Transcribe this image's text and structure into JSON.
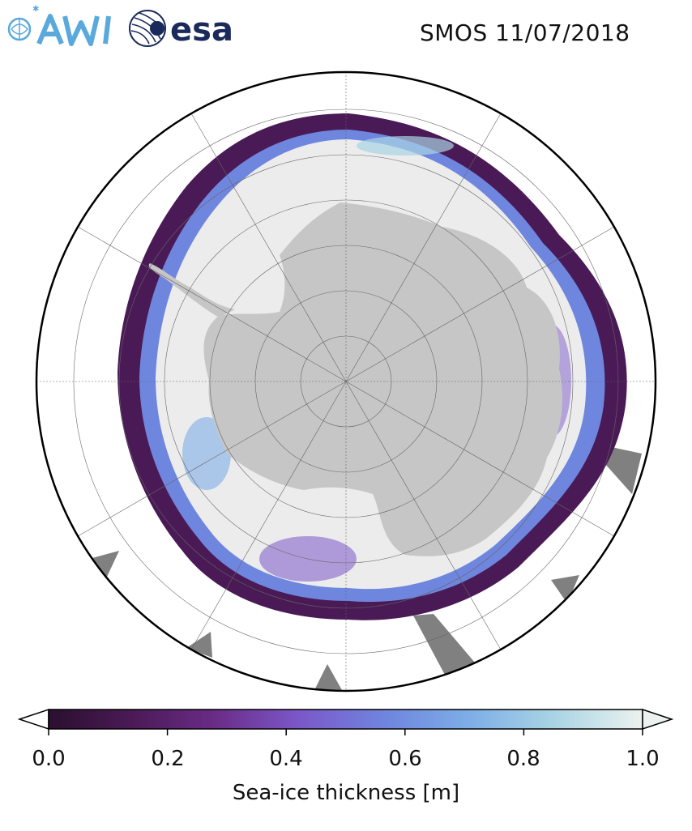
{
  "header": {
    "logos": [
      "AWI",
      "esa"
    ],
    "title": "SMOS 11/07/2018"
  },
  "map": {
    "projection": "south-polar-stereographic",
    "land_color": "#c6c6c6",
    "thick_ice_color": "#ececec",
    "no_data_color": "#808080",
    "ocean_color": "#ffffff",
    "graticule": true
  },
  "colorbar": {
    "label": "Sea-ice thickness [m]",
    "ticks": [
      "0.0",
      "0.2",
      "0.4",
      "0.6",
      "0.8",
      "1.0"
    ],
    "range": [
      0.0,
      1.0
    ],
    "extend": "both",
    "colors": [
      "#2b0f30",
      "#4a1a56",
      "#6a2c87",
      "#7b57c9",
      "#6f86de",
      "#7eaee7",
      "#a9d4e4",
      "#ecf2ef"
    ]
  }
}
